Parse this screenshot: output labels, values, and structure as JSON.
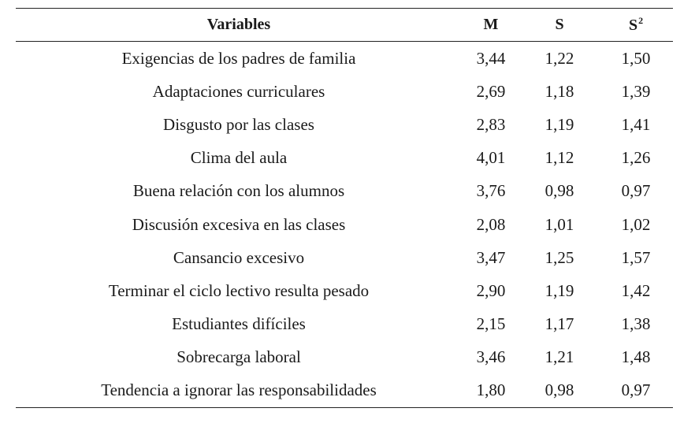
{
  "table": {
    "headers": {
      "variables": "Variables",
      "m": "M",
      "s": "S",
      "s2_base": "S",
      "s2_exp": "2"
    },
    "rows": [
      {
        "variable": "Exigencias de los padres de familia",
        "m": "3,44",
        "s": "1,22",
        "s2": "1,50"
      },
      {
        "variable": "Adaptaciones curriculares",
        "m": "2,69",
        "s": "1,18",
        "s2": "1,39"
      },
      {
        "variable": "Disgusto por las clases",
        "m": "2,83",
        "s": "1,19",
        "s2": "1,41"
      },
      {
        "variable": "Clima del aula",
        "m": "4,01",
        "s": "1,12",
        "s2": "1,26"
      },
      {
        "variable": "Buena relación con los alumnos",
        "m": "3,76",
        "s": "0,98",
        "s2": "0,97"
      },
      {
        "variable": "Discusión excesiva en las clases",
        "m": "2,08",
        "s": "1,01",
        "s2": "1,02"
      },
      {
        "variable": "Cansancio excesivo",
        "m": "3,47",
        "s": "1,25",
        "s2": "1,57"
      },
      {
        "variable": "Terminar el ciclo lectivo resulta pesado",
        "m": "2,90",
        "s": "1,19",
        "s2": "1,42"
      },
      {
        "variable": "Estudiantes difíciles",
        "m": "2,15",
        "s": "1,17",
        "s2": "1,38"
      },
      {
        "variable": "Sobrecarga laboral",
        "m": "3,46",
        "s": "1,21",
        "s2": "1,48"
      },
      {
        "variable": "Tendencia a ignorar las responsabilidades",
        "m": "1,80",
        "s": "0,98",
        "s2": "0,97"
      }
    ]
  }
}
